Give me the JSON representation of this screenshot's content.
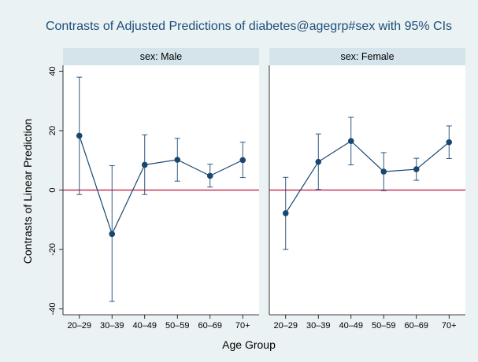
{
  "chart_data": {
    "type": "line",
    "title": "Contrasts of Adjusted Predictions of diabetes@agegrp#sex with 95% CIs",
    "xlabel": "Age Group",
    "ylabel": "Contrasts of Linear Prediction",
    "categories": [
      "20–29",
      "30–39",
      "40–49",
      "50–59",
      "60–69",
      "70+"
    ],
    "ylim": [
      -42,
      42
    ],
    "yticks": [
      -40,
      -20,
      0,
      20,
      40
    ],
    "reference_line": 0,
    "grid": false,
    "panels": [
      {
        "name": "sex: Male",
        "values": [
          18.3,
          -14.8,
          8.5,
          10.2,
          4.8,
          10.1
        ],
        "ci_lower": [
          -1.5,
          -37.5,
          -1.5,
          3.0,
          1.0,
          4.2
        ],
        "ci_upper": [
          38.0,
          8.2,
          18.6,
          17.4,
          8.7,
          16.1
        ]
      },
      {
        "name": "sex: Female",
        "values": [
          -7.8,
          9.5,
          16.5,
          6.2,
          7.0,
          16.1
        ],
        "ci_lower": [
          -20.0,
          0.2,
          8.5,
          -0.2,
          3.3,
          10.6
        ],
        "ci_upper": [
          4.3,
          18.9,
          24.5,
          12.6,
          10.7,
          21.6
        ]
      }
    ],
    "colors": {
      "background": "#eaf2f3",
      "plot_area": "#ffffff",
      "panel_header": "#d4e4ea",
      "series": "#1a476f",
      "reference": "#c0103a",
      "title": "#1f4e79"
    }
  }
}
